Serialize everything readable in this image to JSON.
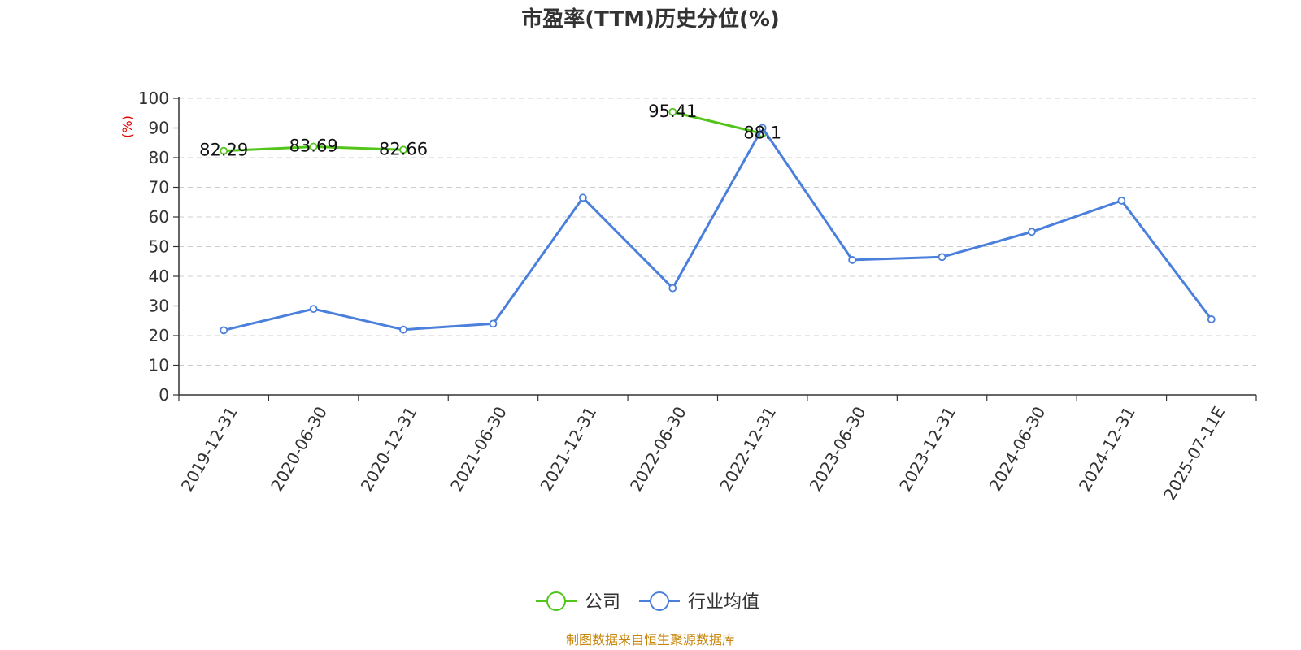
{
  "chart_data": {
    "type": "line",
    "title": "市盈率(TTM)历史分位(%)",
    "ylabel": "(%)",
    "ylim": [
      0,
      100
    ],
    "yticks": [
      "0",
      "10",
      "20",
      "30",
      "40",
      "50",
      "60",
      "70",
      "80",
      "90",
      "100"
    ],
    "categories": [
      "2019-12-31",
      "2020-06-30",
      "2020-12-31",
      "2021-06-30",
      "2021-12-31",
      "2022-06-30",
      "2022-12-31",
      "2023-06-30",
      "2023-12-31",
      "2024-06-30",
      "2024-12-31",
      "2025-07-11E"
    ],
    "grid": true,
    "legend_position": "bottom",
    "series": [
      {
        "name": "公司",
        "color": "#52c41a",
        "values": [
          82.29,
          83.69,
          82.66,
          null,
          null,
          95.41,
          88.1,
          null,
          null,
          null,
          null,
          null
        ],
        "labels": [
          "82.29",
          "83.69",
          "82.66",
          "",
          "",
          "95.41",
          "88.1",
          "",
          "",
          "",
          "",
          ""
        ]
      },
      {
        "name": "行业均值",
        "color": "#4a7fdc",
        "values": [
          21.8,
          29.0,
          22.0,
          24.0,
          66.5,
          36.0,
          90.0,
          45.5,
          46.5,
          55.0,
          65.5,
          25.5
        ]
      }
    ],
    "source": "制图数据来自恒生聚源数据库",
    "source_color": "#c8860a",
    "unit_color": "#e00000"
  }
}
